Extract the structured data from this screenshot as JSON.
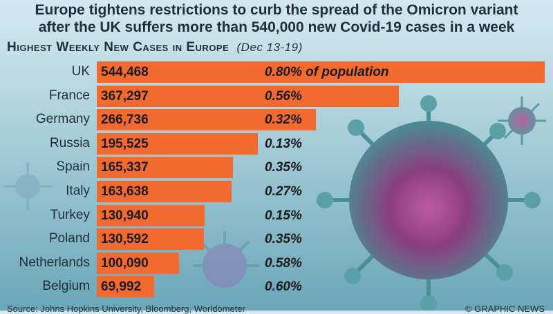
{
  "headline": {
    "line1": "Europe tightens restrictions to curb the spread of the Omicron variant",
    "line2": "after the UK suffers more than 540,000 new Covid-19 cases in a week"
  },
  "subtitle": {
    "title": "Highest Weekly New Cases in Europe",
    "period": "(Dec 13-19)"
  },
  "chart_data": {
    "type": "bar",
    "orientation": "horizontal",
    "title": "Highest Weekly New Cases in Europe",
    "subtitle": "(Dec 13-19)",
    "categories": [
      "UK",
      "France",
      "Germany",
      "Russia",
      "Spain",
      "Italy",
      "Turkey",
      "Poland",
      "Netherlands",
      "Belgium"
    ],
    "values": [
      544468,
      367297,
      266736,
      195525,
      165337,
      163638,
      130940,
      130592,
      100090,
      69992
    ],
    "value_labels": [
      "544,468",
      "367,297",
      "266,736",
      "195,525",
      "165,337",
      "163,638",
      "130,940",
      "130,592",
      "100,090",
      "69,992"
    ],
    "percent_labels": [
      "0.80% of population",
      "0.56%",
      "0.32%",
      "0.13%",
      "0.35%",
      "0.27%",
      "0.15%",
      "0.35%",
      "0.58%",
      "0.60%"
    ],
    "xlim": [
      0,
      544468
    ],
    "bar_color": "#f26a2e"
  },
  "footer": {
    "source": "Source: Johns Hopkins University, Bloomberg, Worldometer",
    "credit": "© GRAPHIC NEWS"
  },
  "colors": {
    "bar": "#f26a2e",
    "text": "#1f2f38",
    "virus": "#4f8f97",
    "virus_core": "#9b3f86"
  }
}
